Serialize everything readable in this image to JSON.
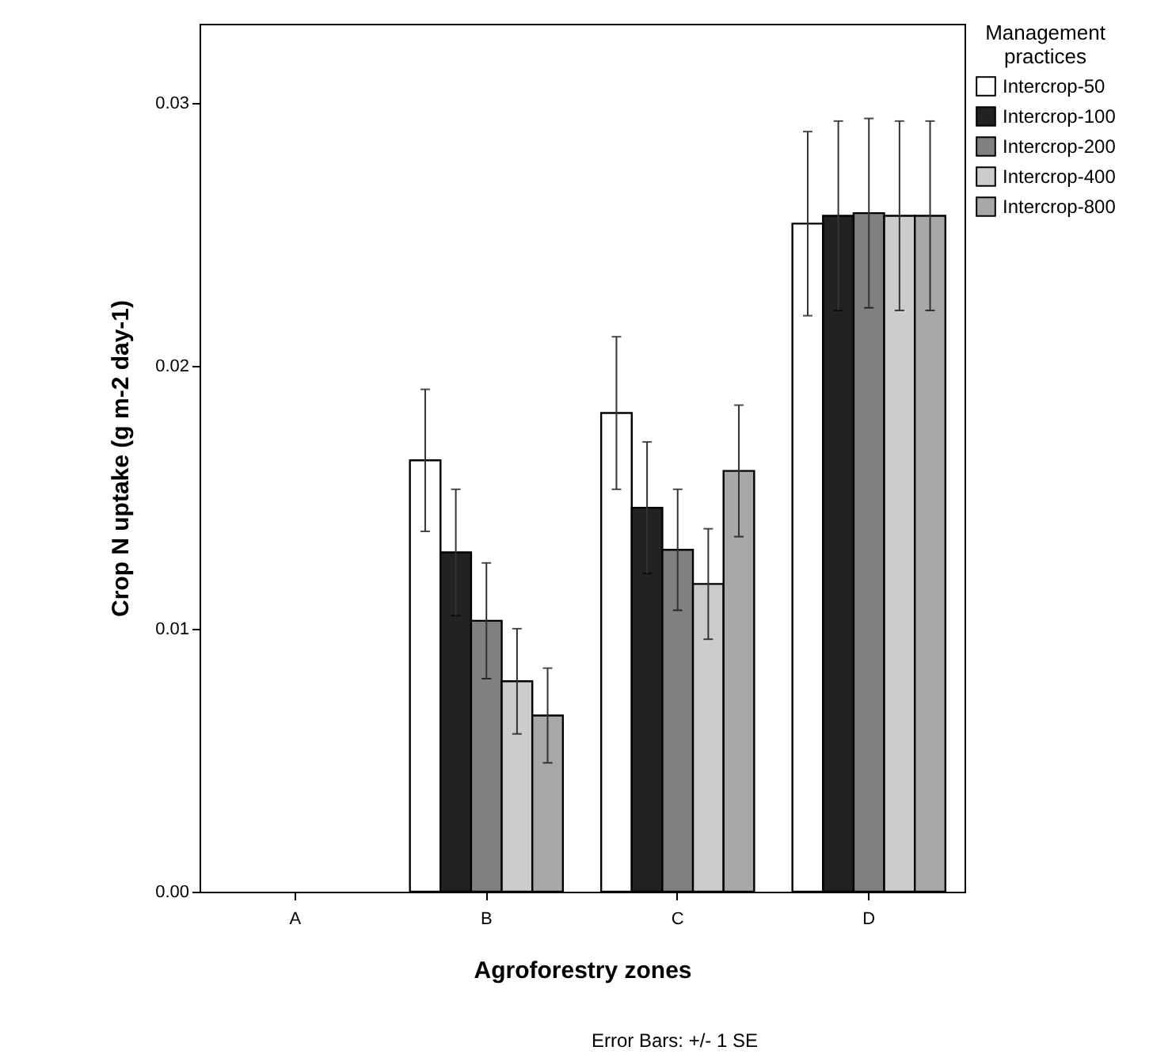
{
  "chart_data": {
    "type": "bar",
    "xlabel": "Agroforestry zones",
    "ylabel": "Crop N uptake (g m-2 day-1)",
    "legend_title": "Management practices",
    "legend": "top right",
    "categories": [
      "A",
      "B",
      "C",
      "D"
    ],
    "ylim": [
      0,
      0.033
    ],
    "yticks": [
      {
        "value": 0,
        "label": "0.00"
      },
      {
        "value": 0.01,
        "label": "0.01"
      },
      {
        "value": 0.02,
        "label": "0.02"
      },
      {
        "value": 0.03,
        "label": "0.03"
      }
    ],
    "series": [
      {
        "name": "Intercrop-50",
        "color": "#ffffff",
        "values": [
          0,
          0.0164,
          0.0182,
          0.0254
        ],
        "errors": [
          null,
          0.0027,
          0.0029,
          0.0035
        ]
      },
      {
        "name": "Intercrop-100",
        "color": "#222222",
        "values": [
          0,
          0.0129,
          0.0146,
          0.0257
        ],
        "errors": [
          null,
          0.0024,
          0.0025,
          0.0036
        ]
      },
      {
        "name": "Intercrop-200",
        "color": "#808080",
        "values": [
          0,
          0.0103,
          0.013,
          0.0258
        ],
        "errors": [
          null,
          0.0022,
          0.0023,
          0.0036
        ]
      },
      {
        "name": "Intercrop-400",
        "color": "#cccccc",
        "values": [
          0,
          0.008,
          0.0117,
          0.0257
        ],
        "errors": [
          null,
          0.002,
          0.0021,
          0.0036
        ]
      },
      {
        "name": "Intercrop-800",
        "color": "#a8a8a8",
        "values": [
          0,
          0.0067,
          0.016,
          0.0257
        ],
        "errors": [
          null,
          0.0018,
          0.0025,
          0.0036
        ]
      }
    ],
    "annotations": [
      "Error Bars: +/- 1 SE"
    ]
  }
}
